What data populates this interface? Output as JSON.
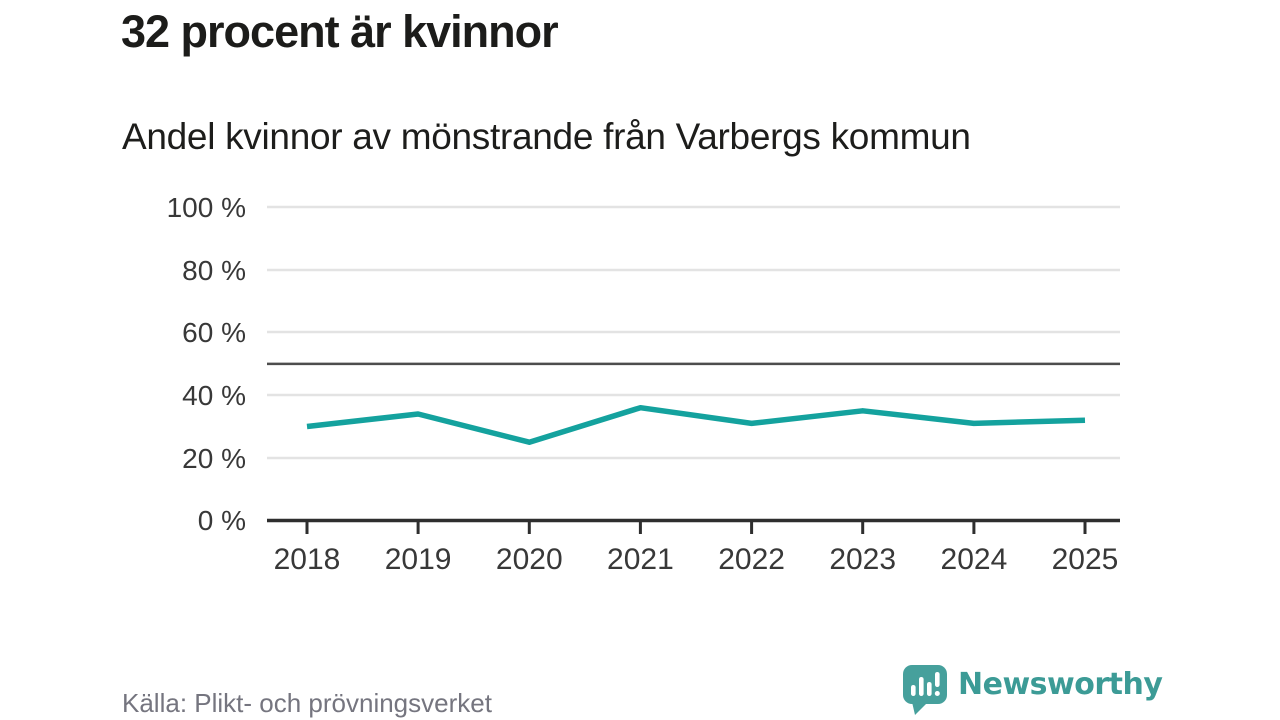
{
  "header": {
    "title": "32 procent är kvinnor",
    "subtitle": "Andel kvinnor av mönstrande från Varbergs kommun"
  },
  "chart_data": {
    "type": "line",
    "title": "Andel kvinnor av mönstrande från Varbergs kommun",
    "categories": [
      "2018",
      "2019",
      "2020",
      "2021",
      "2022",
      "2023",
      "2024",
      "2025"
    ],
    "series": [
      {
        "name": "Andel kvinnor av mönstrande",
        "values": [
          30,
          34,
          25,
          36,
          31,
          35,
          31,
          32
        ]
      }
    ],
    "unit": "%",
    "xlabel": "",
    "ylabel": "",
    "ylim": [
      0,
      100
    ],
    "y_ticks": [
      100,
      80,
      60,
      40,
      20,
      0
    ],
    "y_tick_labels": [
      "100 %",
      "80 %",
      "60 %",
      "40 %",
      "20 %",
      "0 %"
    ],
    "grid": true,
    "legend": "none",
    "reference_line": {
      "value": 50
    },
    "line_color": "#14a29e",
    "reference_line_color": "#4d4d4d",
    "gridline_color": "#e3e3e3",
    "axis_color": "#2e2e2e"
  },
  "footer": {
    "source": "Källa: Plikt- och prövningsverket",
    "brand": "Newsworthy",
    "brand_color": "#3c9b96"
  }
}
